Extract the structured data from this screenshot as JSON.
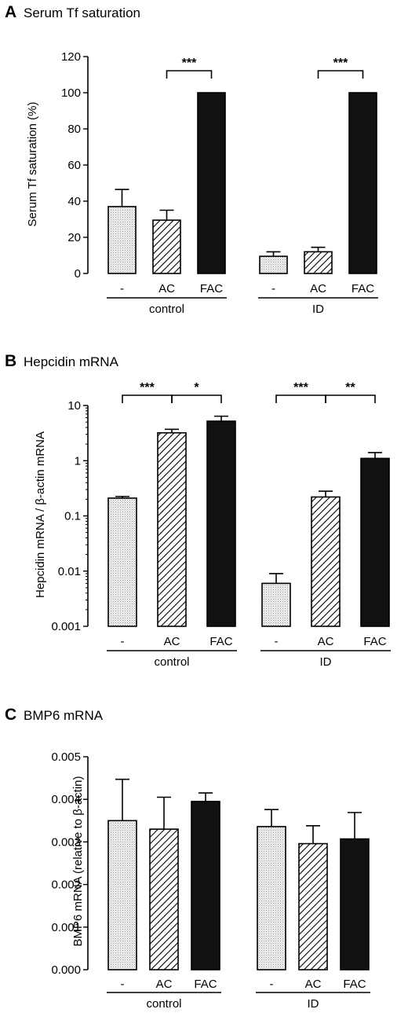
{
  "chart_data": [
    {
      "type": "bar",
      "panel_letter": "A",
      "title": "Serum Tf saturation",
      "ylabel": "Serum Tf saturation (%)",
      "scale": "linear",
      "ylim": [
        0,
        120
      ],
      "yticks": [
        "0",
        "20",
        "40",
        "60",
        "80",
        "100",
        "120"
      ],
      "groups": [
        {
          "label": "control",
          "categories": [
            "-",
            "AC",
            "FAC"
          ],
          "values": [
            37,
            29.5,
            100
          ],
          "errors": [
            9.5,
            5.5,
            0
          ]
        },
        {
          "label": "ID",
          "categories": [
            "-",
            "AC",
            "FAC"
          ],
          "values": [
            9.5,
            12,
            100
          ],
          "errors": [
            2.5,
            2.5,
            0
          ]
        }
      ],
      "fills": [
        "dotted",
        "hatched",
        "#111111"
      ],
      "significance": [
        {
          "group": 0,
          "from": 1,
          "to": 2,
          "label": "***"
        },
        {
          "group": 1,
          "from": 1,
          "to": 2,
          "label": "***"
        }
      ]
    },
    {
      "type": "bar",
      "panel_letter": "B",
      "title": "Hepcidin mRNA",
      "ylabel": "Hepcidin mRNA / β-actin mRNA",
      "scale": "log",
      "ylim": [
        0.001,
        10
      ],
      "yticks": [
        "0.001",
        "0.01",
        "0.1",
        "1",
        "10"
      ],
      "groups": [
        {
          "label": "control",
          "categories": [
            "-",
            "AC",
            "FAC"
          ],
          "values": [
            0.21,
            3.2,
            5.2
          ],
          "errors": [
            0.015,
            0.5,
            1.2
          ]
        },
        {
          "label": "ID",
          "categories": [
            "-",
            "AC",
            "FAC"
          ],
          "values": [
            0.006,
            0.22,
            1.1
          ],
          "errors": [
            0.003,
            0.06,
            0.3
          ]
        }
      ],
      "fills": [
        "dotted",
        "hatched",
        "#111111"
      ],
      "significance": [
        {
          "group": 0,
          "from": 0,
          "to": 1,
          "label": "***"
        },
        {
          "group": 0,
          "from": 1,
          "to": 2,
          "label": "*"
        },
        {
          "group": 1,
          "from": 0,
          "to": 1,
          "label": "***"
        },
        {
          "group": 1,
          "from": 1,
          "to": 2,
          "label": "**"
        }
      ]
    },
    {
      "type": "bar",
      "panel_letter": "C",
      "title": "BMP6 mRNA",
      "ylabel": "BMP6 mRNA (relative to β-actin)",
      "scale": "linear",
      "ylim": [
        0,
        0.005
      ],
      "yticks": [
        "0.000",
        "0.001",
        "0.002",
        "0.003",
        "0.004",
        "0.005"
      ],
      "groups": [
        {
          "label": "control",
          "categories": [
            "-",
            "AC",
            "FAC"
          ],
          "values": [
            0.0035,
            0.0033,
            0.00395
          ],
          "errors": [
            0.00097,
            0.00075,
            0.0002
          ]
        },
        {
          "label": "ID",
          "categories": [
            "-",
            "AC",
            "FAC"
          ],
          "values": [
            0.00336,
            0.00296,
            0.00307
          ],
          "errors": [
            0.0004,
            0.00042,
            0.00062
          ]
        }
      ],
      "fills": [
        "dotted",
        "hatched",
        "#111111"
      ],
      "significance": []
    }
  ]
}
